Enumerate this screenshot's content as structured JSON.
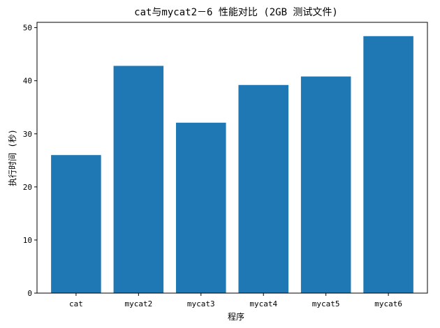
{
  "chart_data": {
    "type": "bar",
    "title": "cat与mycat2－6 性能对比 (2GB 测试文件)",
    "xlabel": "程序",
    "ylabel": "执行时间 (秒)",
    "categories": [
      "cat",
      "mycat2",
      "mycat3",
      "mycat4",
      "mycat5",
      "mycat6"
    ],
    "values": [
      26.0,
      42.8,
      32.1,
      39.2,
      40.8,
      48.4
    ],
    "ylim": [
      0,
      51
    ],
    "yticks": [
      0,
      10,
      20,
      30,
      40,
      50
    ],
    "bar_color": "#1f77b4",
    "grid": false
  }
}
